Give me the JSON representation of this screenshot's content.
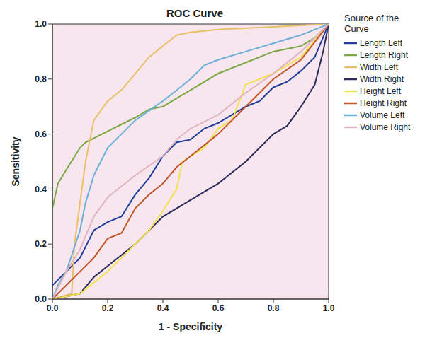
{
  "chart_data": {
    "type": "line",
    "title": "ROC Curve",
    "x_label": "1 - Specificity",
    "y_label": "Sensitivity",
    "legend_title": "Source of the Curve",
    "legend": "right",
    "grid": false,
    "xlim": [
      0,
      1
    ],
    "ylim": [
      0,
      1
    ],
    "xticks": [
      {
        "value": 0,
        "label": "0.0"
      },
      {
        "value": 0.2,
        "label": "0.2"
      },
      {
        "value": 0.4,
        "label": "0.4"
      },
      {
        "value": 0.6,
        "label": "0.6"
      },
      {
        "value": 0.8,
        "label": "0.8"
      },
      {
        "value": 1,
        "label": "1.0"
      }
    ],
    "yticks": [
      {
        "value": 0,
        "label": "0.0"
      },
      {
        "value": 0.2,
        "label": "0.2"
      },
      {
        "value": 0.4,
        "label": "0.4"
      },
      {
        "value": 0.6,
        "label": "0.6"
      },
      {
        "value": 0.8,
        "label": "0.8"
      },
      {
        "value": 1,
        "label": "1.0"
      }
    ],
    "series": [
      {
        "name": "Length Left",
        "color": "#1f3f9a",
        "x": [
          0,
          0.05,
          0.1,
          0.15,
          0.2,
          0.25,
          0.3,
          0.35,
          0.4,
          0.45,
          0.5,
          0.55,
          0.6,
          0.7,
          0.75,
          0.8,
          0.85,
          0.9,
          0.95,
          1
        ],
        "values": [
          0.05,
          0.1,
          0.15,
          0.25,
          0.28,
          0.3,
          0.38,
          0.44,
          0.52,
          0.57,
          0.58,
          0.62,
          0.64,
          0.7,
          0.72,
          0.77,
          0.79,
          0.83,
          0.88,
          1
        ]
      },
      {
        "name": "Length Right",
        "color": "#79a845",
        "x": [
          0,
          0.02,
          0.05,
          0.1,
          0.12,
          0.2,
          0.3,
          0.35,
          0.4,
          0.5,
          0.6,
          0.7,
          0.8,
          0.9,
          0.95,
          1
        ],
        "values": [
          0.33,
          0.42,
          0.47,
          0.55,
          0.57,
          0.61,
          0.66,
          0.69,
          0.7,
          0.76,
          0.82,
          0.86,
          0.9,
          0.92,
          0.95,
          1
        ]
      },
      {
        "name": "Width Left",
        "color": "#e8c068",
        "x": [
          0,
          0.07,
          0.08,
          0.1,
          0.12,
          0.15,
          0.2,
          0.25,
          0.3,
          0.35,
          0.4,
          0.45,
          0.5,
          0.6,
          0.8,
          1
        ],
        "values": [
          0,
          0.02,
          0.2,
          0.35,
          0.5,
          0.65,
          0.72,
          0.76,
          0.82,
          0.88,
          0.92,
          0.96,
          0.97,
          0.98,
          0.99,
          1
        ]
      },
      {
        "name": "Width Right",
        "color": "#2b2b5c",
        "x": [
          0,
          0.1,
          0.15,
          0.2,
          0.3,
          0.4,
          0.5,
          0.6,
          0.7,
          0.8,
          0.85,
          0.9,
          0.95,
          0.98,
          1
        ],
        "values": [
          0,
          0.02,
          0.08,
          0.12,
          0.2,
          0.3,
          0.36,
          0.42,
          0.5,
          0.6,
          0.63,
          0.7,
          0.78,
          0.9,
          1
        ]
      },
      {
        "name": "Height Left",
        "color": "#f3e14c",
        "x": [
          0,
          0.1,
          0.2,
          0.3,
          0.35,
          0.4,
          0.45,
          0.47,
          0.55,
          0.6,
          0.65,
          0.7,
          0.8,
          0.9,
          1
        ],
        "values": [
          0,
          0.02,
          0.1,
          0.2,
          0.25,
          0.32,
          0.4,
          0.5,
          0.55,
          0.62,
          0.65,
          0.78,
          0.82,
          0.88,
          1
        ]
      },
      {
        "name": "Height Right",
        "color": "#c0552a",
        "x": [
          0,
          0.05,
          0.1,
          0.15,
          0.2,
          0.25,
          0.3,
          0.35,
          0.4,
          0.45,
          0.5,
          0.55,
          0.6,
          0.7,
          0.75,
          0.8,
          0.9,
          1
        ],
        "values": [
          0,
          0.05,
          0.1,
          0.15,
          0.22,
          0.24,
          0.33,
          0.38,
          0.42,
          0.48,
          0.52,
          0.56,
          0.6,
          0.7,
          0.75,
          0.8,
          0.87,
          1
        ]
      },
      {
        "name": "Volume Left",
        "color": "#6ab0d8",
        "x": [
          0,
          0.02,
          0.05,
          0.1,
          0.12,
          0.15,
          0.2,
          0.25,
          0.3,
          0.4,
          0.5,
          0.55,
          0.6,
          0.7,
          0.8,
          0.9,
          1
        ],
        "values": [
          0,
          0.05,
          0.1,
          0.25,
          0.35,
          0.45,
          0.55,
          0.6,
          0.65,
          0.72,
          0.8,
          0.85,
          0.87,
          0.9,
          0.93,
          0.96,
          1
        ]
      },
      {
        "name": "Volume Right",
        "color": "#e0b4c0",
        "x": [
          0,
          0.05,
          0.1,
          0.15,
          0.2,
          0.3,
          0.4,
          0.45,
          0.5,
          0.6,
          0.7,
          0.8,
          0.9,
          1
        ],
        "values": [
          0,
          0.1,
          0.18,
          0.3,
          0.37,
          0.45,
          0.52,
          0.58,
          0.62,
          0.67,
          0.75,
          0.82,
          0.9,
          1
        ]
      }
    ]
  }
}
